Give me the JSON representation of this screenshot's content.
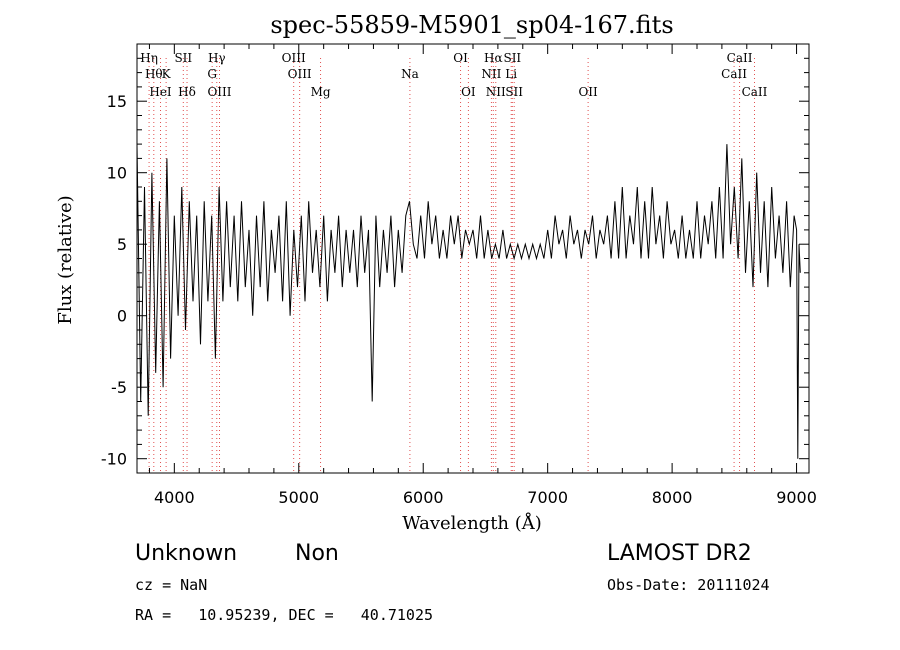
{
  "chart_data": {
    "type": "line",
    "title": "spec-55859-M5901_sp04-167.fits",
    "xlabel": "Wavelength (Å)",
    "ylabel": "Flux (relative)",
    "xlim": [
      3700,
      9100
    ],
    "ylim": [
      -11,
      19
    ],
    "xticks": [
      4000,
      5000,
      6000,
      7000,
      8000,
      9000
    ],
    "yticks": [
      -10,
      -5,
      0,
      5,
      10,
      15
    ],
    "line_color": "#000000",
    "marker_color": "#e05050",
    "grid": false,
    "series": [
      {
        "x": [
          3700,
          3730,
          3760,
          3790,
          3820,
          3850,
          3880,
          3910,
          3940,
          3970,
          4000,
          4030,
          4060,
          4090,
          4120,
          4150,
          4180,
          4210,
          4240,
          4270,
          4300,
          4330,
          4360,
          4390,
          4420,
          4450,
          4480,
          4510,
          4540,
          4570,
          4600,
          4630,
          4660,
          4690,
          4720,
          4750,
          4780,
          4810,
          4840,
          4870,
          4900,
          4930,
          4960,
          4990,
          5020,
          5050,
          5080,
          5110,
          5140,
          5170,
          5200,
          5230,
          5260,
          5290,
          5320,
          5350,
          5380,
          5410,
          5440,
          5470,
          5500,
          5530,
          5560,
          5590,
          5620,
          5650,
          5680,
          5710,
          5740,
          5770,
          5800,
          5830,
          5860,
          5890,
          5920,
          5950,
          5980,
          6010,
          6040,
          6070,
          6100,
          6130,
          6160,
          6190,
          6220,
          6250,
          6280,
          6310,
          6340,
          6370,
          6400,
          6430,
          6460,
          6490,
          6520,
          6550,
          6580,
          6610,
          6640,
          6670,
          6700,
          6730,
          6760,
          6790,
          6820,
          6850,
          6880,
          6910,
          6940,
          6970,
          7000,
          7030,
          7060,
          7090,
          7120,
          7150,
          7180,
          7210,
          7240,
          7270,
          7300,
          7330,
          7360,
          7390,
          7420,
          7450,
          7480,
          7510,
          7540,
          7570,
          7600,
          7630,
          7660,
          7690,
          7720,
          7750,
          7780,
          7810,
          7840,
          7870,
          7900,
          7930,
          7960,
          7990,
          8020,
          8050,
          8080,
          8110,
          8140,
          8170,
          8200,
          8230,
          8260,
          8290,
          8320,
          8350,
          8380,
          8410,
          8440,
          8470,
          8500,
          8530,
          8560,
          8590,
          8620,
          8650,
          8680,
          8710,
          8740,
          8770,
          8800,
          8830,
          8860,
          8890,
          8920,
          8950,
          8980,
          9000,
          9010,
          9020,
          9030
        ],
        "y": [
          12,
          -6,
          9,
          -7,
          10,
          -4,
          8,
          -5,
          11,
          -3,
          7,
          0,
          9,
          -1,
          8,
          1,
          7,
          -2,
          8,
          1,
          7,
          -3,
          9,
          1,
          8,
          2,
          7,
          1,
          8,
          2,
          6,
          0,
          7,
          2,
          8,
          1,
          6,
          3,
          7,
          1,
          8,
          0,
          6,
          2,
          7,
          1,
          8,
          3,
          6,
          2,
          7,
          1,
          6,
          3,
          7,
          2,
          6,
          3,
          6,
          2,
          7,
          3,
          6,
          -6,
          7,
          2,
          6,
          3,
          7,
          2,
          6,
          3,
          7,
          8,
          5,
          4,
          7,
          4,
          8,
          5,
          7,
          4,
          6,
          4,
          7,
          5,
          7,
          4,
          6,
          5,
          6,
          4,
          7,
          4,
          6,
          4,
          5,
          4,
          6,
          4,
          5,
          4,
          5,
          4,
          5,
          4,
          5,
          4,
          5,
          4,
          6,
          4,
          7,
          5,
          6,
          4,
          7,
          5,
          6,
          4,
          6,
          5,
          7,
          4,
          6,
          5,
          7,
          4,
          8,
          4,
          9,
          4,
          7,
          5,
          9,
          4,
          8,
          4,
          9,
          5,
          7,
          4,
          8,
          5,
          6,
          4,
          7,
          4,
          6,
          4,
          8,
          4,
          7,
          5,
          8,
          4,
          9,
          4,
          12,
          5,
          9,
          4,
          11,
          3,
          8,
          2,
          10,
          3,
          8,
          2,
          9,
          4,
          7,
          3,
          8,
          2,
          7,
          6,
          -10,
          5,
          3
        ]
      }
    ],
    "lines": [
      {
        "x": 3797,
        "top": "Hη",
        "mid": "",
        "bot": ""
      },
      {
        "x": 3835,
        "top": "",
        "mid": "Hθ",
        "bot": ""
      },
      {
        "x": 3889,
        "top": "",
        "mid": "",
        "bot": "HeI"
      },
      {
        "x": 3934,
        "top": "",
        "mid": "K",
        "bot": ""
      },
      {
        "x": 4072,
        "top": "SII",
        "mid": "",
        "bot": ""
      },
      {
        "x": 4102,
        "top": "",
        "mid": "",
        "bot": "Hδ"
      },
      {
        "x": 4304,
        "top": "",
        "mid": "G",
        "bot": ""
      },
      {
        "x": 4341,
        "top": "Hγ",
        "mid": "",
        "bot": ""
      },
      {
        "x": 4363,
        "top": "",
        "mid": "",
        "bot": "OIII"
      },
      {
        "x": 4959,
        "top": "OIII",
        "mid": "",
        "bot": ""
      },
      {
        "x": 5007,
        "top": "",
        "mid": "OIII",
        "bot": ""
      },
      {
        "x": 5175,
        "top": "",
        "mid": "",
        "bot": "Mg"
      },
      {
        "x": 5893,
        "top": "",
        "mid": "Na",
        "bot": ""
      },
      {
        "x": 6300,
        "top": "OI",
        "mid": "",
        "bot": ""
      },
      {
        "x": 6363,
        "top": "",
        "mid": "",
        "bot": "OI"
      },
      {
        "x": 6548,
        "top": "",
        "mid": "NII",
        "bot": ""
      },
      {
        "x": 6563,
        "top": "Hα",
        "mid": "",
        "bot": ""
      },
      {
        "x": 6583,
        "top": "",
        "mid": "",
        "bot": "NII"
      },
      {
        "x": 6707,
        "top": "",
        "mid": "Li",
        "bot": ""
      },
      {
        "x": 6716,
        "top": "SII",
        "mid": "",
        "bot": ""
      },
      {
        "x": 6731,
        "top": "",
        "mid": "",
        "bot": "SII"
      },
      {
        "x": 7325,
        "top": "",
        "mid": "",
        "bot": "OII"
      },
      {
        "x": 8498,
        "top": "",
        "mid": "CaII",
        "bot": ""
      },
      {
        "x": 8542,
        "top": "CaII",
        "mid": "",
        "bot": ""
      },
      {
        "x": 8662,
        "top": "",
        "mid": "",
        "bot": "CaII"
      }
    ]
  },
  "info": {
    "class": "Unknown",
    "subclass": "Non",
    "survey": "LAMOST DR2",
    "cz": "cz = NaN",
    "obs_date": "Obs-Date: 20111024",
    "coords": "RA =   10.95239, DEC =   40.71025"
  }
}
